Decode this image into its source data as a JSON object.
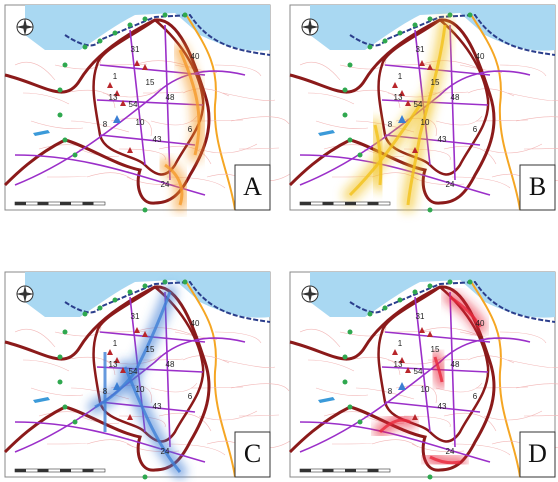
{
  "panels": [
    {
      "letter": "A",
      "color": "#f59a2a"
    },
    {
      "letter": "B",
      "color": "#f2c21a"
    },
    {
      "letter": "C",
      "color": "#3f7fd6"
    },
    {
      "letter": "D",
      "color": "#e8283c"
    }
  ],
  "map_labels": [
    "31",
    "40",
    "1",
    "15",
    "13",
    "54",
    "48",
    "8",
    "10",
    "43",
    "6",
    "24"
  ]
}
